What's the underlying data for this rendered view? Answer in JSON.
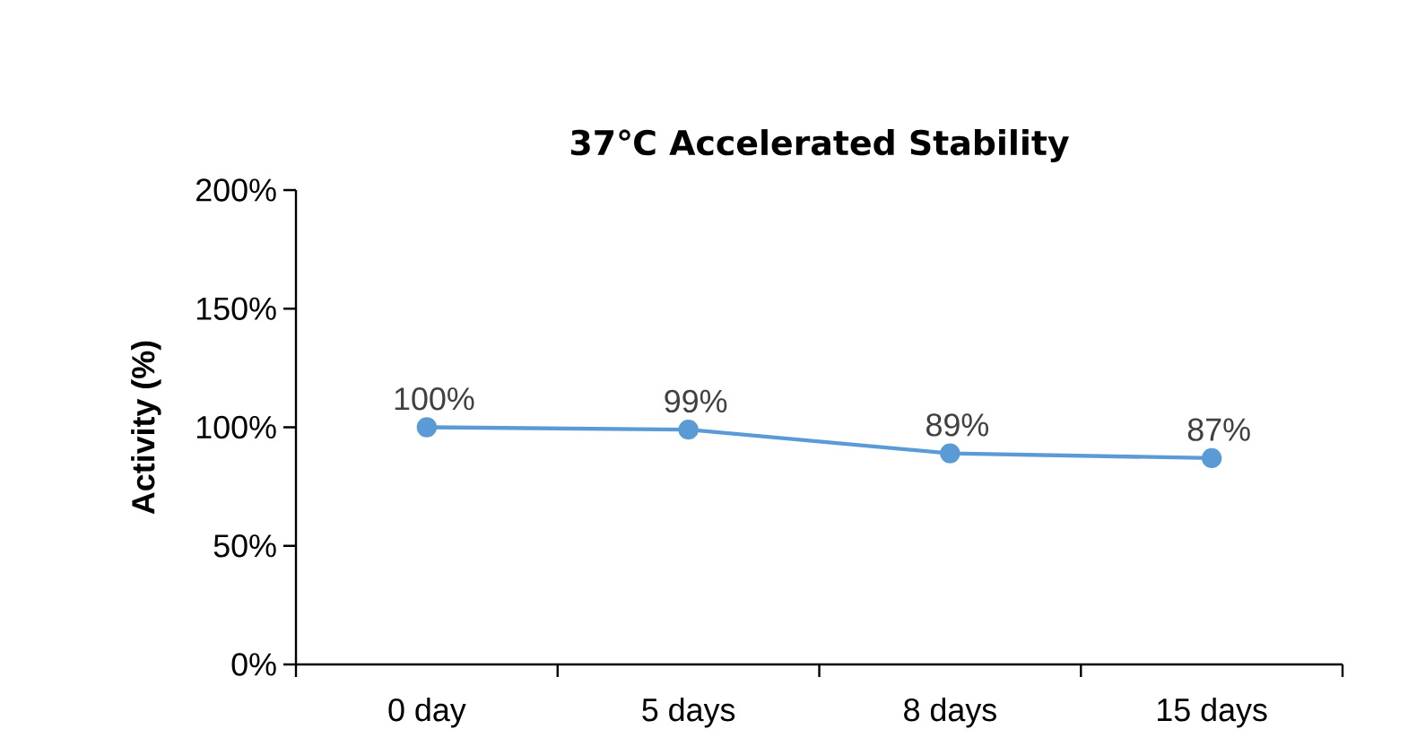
{
  "chart_data": {
    "type": "line",
    "title": "37℃ Accelerated Stability",
    "ylabel": "Activity (%)",
    "categories": [
      "0 day",
      "5 days",
      "8 days",
      "15 days"
    ],
    "series": [
      {
        "color": "#5b9bd5",
        "values": [
          100,
          99,
          89,
          87
        ],
        "value_labels": [
          "100%",
          "99%",
          "89%",
          "87%"
        ]
      }
    ],
    "ylim": [
      0,
      200
    ],
    "yticks": [
      {
        "value": 0,
        "label": "0%"
      },
      {
        "value": 50,
        "label": "50%"
      },
      {
        "value": 100,
        "label": "100%"
      },
      {
        "value": 150,
        "label": "150%"
      },
      {
        "value": 200,
        "label": "200%"
      }
    ],
    "marker": "circle",
    "line_style": "solid",
    "grid": false
  }
}
